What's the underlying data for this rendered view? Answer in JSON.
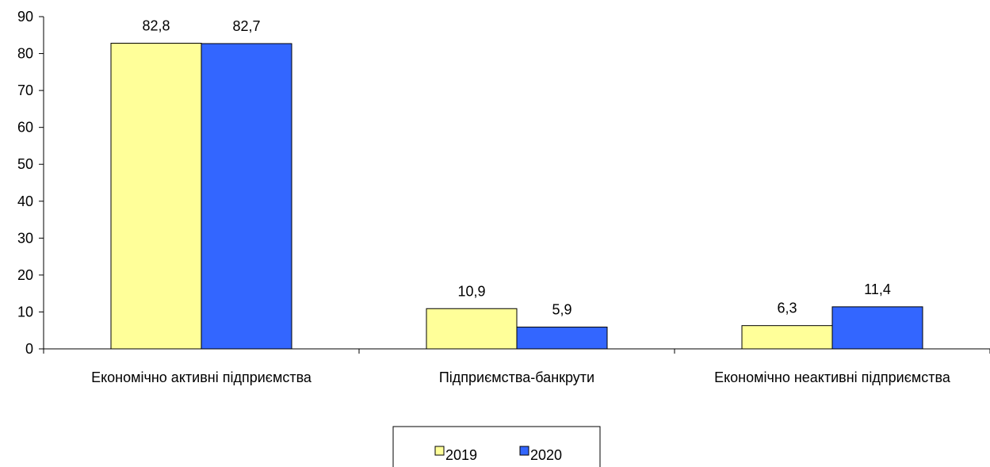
{
  "chart_data": {
    "type": "bar",
    "title": "",
    "xlabel": "",
    "ylabel": "",
    "categories": [
      "Економічно активні підприємства",
      "Підприємства-банкрути",
      "Економічно неактивні підприємства"
    ],
    "series": [
      {
        "name": "2019",
        "values": [
          82.8,
          10.9,
          6.3
        ],
        "labels": [
          "82,8",
          "10,9",
          "6,3"
        ],
        "color": "#ffff99"
      },
      {
        "name": "2020",
        "values": [
          82.7,
          5.9,
          11.4
        ],
        "labels": [
          "82,7",
          "5,9",
          "11,4"
        ],
        "color": "#3366ff"
      }
    ],
    "ylim": [
      0,
      90
    ],
    "yticks": [
      0,
      10,
      20,
      30,
      40,
      50,
      60,
      70,
      80,
      90
    ],
    "grid": false,
    "legend_position": "bottom"
  }
}
